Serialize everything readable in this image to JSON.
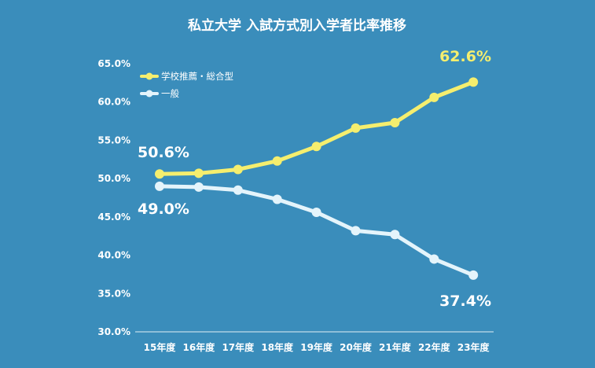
{
  "chart_data": {
    "type": "line",
    "title": "私立大学 入試方式別入学者比率推移",
    "categories": [
      "15年度",
      "16年度",
      "17年度",
      "18年度",
      "19年度",
      "20年度",
      "21年度",
      "22年度",
      "23年度"
    ],
    "series": [
      {
        "name": "学校推薦・総合型",
        "color": "#f5ee6e",
        "values": [
          50.6,
          50.7,
          51.2,
          52.3,
          54.2,
          56.6,
          57.3,
          60.6,
          62.6
        ],
        "first_label": "50.6%",
        "last_label": "62.6%"
      },
      {
        "name": "一般",
        "color": "#e4f4fb",
        "values": [
          49.0,
          48.9,
          48.5,
          47.3,
          45.6,
          43.2,
          42.7,
          39.5,
          37.4
        ],
        "first_label": "49.0%",
        "last_label": "37.4%"
      }
    ],
    "y_ticks": [
      "30.0%",
      "35.0%",
      "40.0%",
      "45.0%",
      "50.0%",
      "55.0%",
      "60.0%",
      "65.0%"
    ],
    "ylim": [
      30,
      65
    ],
    "grid": false,
    "legend_position": "top-left",
    "background_color": "#3a8dbb",
    "label_color_first_series": "#ffffff",
    "label_color_last_yellow": "#f5ee6e"
  }
}
